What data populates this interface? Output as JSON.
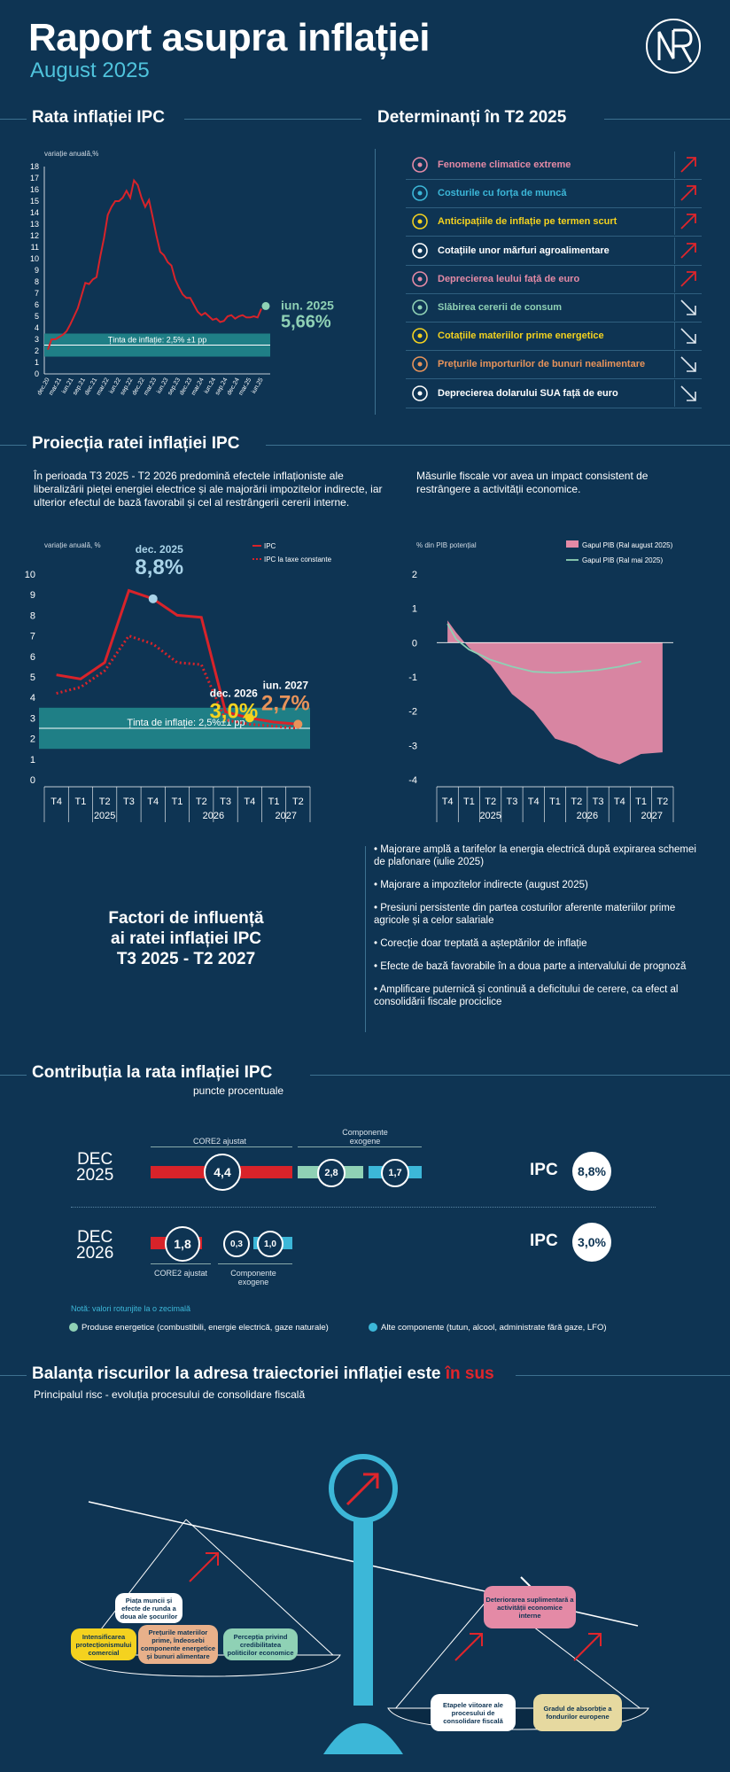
{
  "header": {
    "title": "Raport asupra inflației",
    "subtitle": "August 2025"
  },
  "colors": {
    "bg": "#0e3453",
    "red": "#d8232a",
    "teal": "#1f7f86",
    "green": "#8fd1b5",
    "cyan": "#3cb7d8",
    "pink": "#e48aa6",
    "yellow": "#f4d21f",
    "orange": "#e8935a"
  },
  "sections": {
    "ipc": "Rata inflației IPC",
    "determinants": "Determinanți în T2 2025",
    "projection": "Proiecția ratei inflației IPC",
    "contribution": "Contribuția la rata inflației IPC",
    "contribution_sub": "puncte procentuale",
    "risks_title_a": "Balanța riscurilor la adresa traiectoriei inflației este ",
    "risks_title_b": "în sus",
    "risks_sub": "Principalul risc - evoluția procesului de consolidare fiscală"
  },
  "determinants": [
    {
      "label": "Fenomene climatice extreme",
      "color": "#e48aa6",
      "icon": "climate-icon",
      "dir": "up"
    },
    {
      "label": "Costurile cu forța de muncă",
      "color": "#3cb7d8",
      "icon": "wallet-icon",
      "dir": "up"
    },
    {
      "label": "Anticipațiile de inflație pe termen scurt",
      "color": "#f4d21f",
      "icon": "expectations-icon",
      "dir": "up"
    },
    {
      "label": "Cotațiile unor mărfuri agroalimentare",
      "color": "#ffffff",
      "icon": "agro-icon",
      "dir": "up"
    },
    {
      "label": "Deprecierea leului față de euro",
      "color": "#e48aa6",
      "icon": "euro-icon",
      "dir": "up"
    },
    {
      "label": "Slăbirea cererii de consum",
      "color": "#8fd1b5",
      "icon": "cart-icon",
      "dir": "down"
    },
    {
      "label": "Cotațiile materiilor prime energetice",
      "color": "#f4d21f",
      "icon": "energy-icon",
      "dir": "down"
    },
    {
      "label": "Prețurile importurilor de bunuri nealimentare",
      "color": "#e8935a",
      "icon": "import-icon",
      "dir": "down"
    },
    {
      "label": "Deprecierea dolarului SUA față de euro",
      "color": "#ffffff",
      "icon": "dollar-icon",
      "dir": "down"
    }
  ],
  "chart_data": [
    {
      "type": "line",
      "title": "Rata inflației IPC",
      "ylabel": "variație anuală,%",
      "ylim": [
        0,
        18
      ],
      "yticks": [
        0,
        1,
        2,
        3,
        4,
        5,
        6,
        7,
        8,
        9,
        10,
        11,
        12,
        13,
        14,
        15,
        16,
        17,
        18
      ],
      "xticks": [
        "dec.20",
        "mar.21",
        "iun.21",
        "sep.21",
        "dec.21",
        "mar.22",
        "iun.22",
        "sep.22",
        "dec.22",
        "mar.23",
        "iun.23",
        "sep.23",
        "dec.23",
        "mar.24",
        "iun.24",
        "sep.24",
        "dec.24",
        "mar.25",
        "iun.25"
      ],
      "series": [
        {
          "values": [
            2.1,
            3.0,
            3.0,
            3.2,
            3.4,
            3.7,
            4.3,
            5.0,
            5.7,
            6.8,
            7.9,
            7.8,
            8.2,
            8.4,
            10.2,
            11.8,
            13.8,
            14.5,
            15.0,
            15.0,
            15.3,
            15.9,
            15.3,
            16.8,
            16.4,
            15.3,
            14.5,
            15.1,
            13.6,
            12.0,
            10.6,
            10.3,
            9.7,
            9.4,
            8.2,
            7.5,
            6.9,
            6.6,
            6.6,
            6.0,
            5.4,
            5.1,
            5.3,
            5.0,
            4.7,
            4.8,
            4.5,
            4.6,
            5.0,
            5.1,
            4.8,
            5.0,
            5.1,
            4.9,
            4.9,
            5.0,
            4.9,
            5.66
          ],
          "color": "#d8232a"
        }
      ],
      "target_band": [
        1.5,
        3.5
      ],
      "target_line": 2.5,
      "target_label": "Ținta de inflație: 2,5% ±1 pp",
      "endpoint_label": "iun. 2025",
      "endpoint_value": "5,66%"
    },
    {
      "type": "line",
      "ylabel": "variație anuală, %",
      "ylim": [
        0,
        10
      ],
      "yticks": [
        0,
        1,
        2,
        3,
        4,
        5,
        6,
        7,
        8,
        9,
        10
      ],
      "categories": [
        "T4",
        "T1",
        "T2",
        "T3",
        "T4",
        "T1",
        "T2",
        "T3",
        "T4",
        "T1",
        "T2"
      ],
      "years": [
        "2025",
        "2026",
        "2027"
      ],
      "series": [
        {
          "name": "IPC",
          "values": [
            5.1,
            4.9,
            5.7,
            9.2,
            8.8,
            8.0,
            7.9,
            3.3,
            3.0,
            2.8,
            2.7
          ],
          "color": "#d8232a"
        },
        {
          "name": "IPC la taxe constante",
          "values": [
            4.2,
            4.5,
            5.3,
            7.0,
            6.6,
            5.7,
            5.6,
            2.9,
            2.7,
            2.6,
            2.5
          ],
          "color": "#d8232a",
          "dashed": true
        }
      ],
      "target_band": [
        1.5,
        3.5
      ],
      "target_line": 2.5,
      "target_label": "Ținta de inflație: 2,5%±1 pp",
      "annotations": [
        {
          "label": "dec. 2025",
          "value": "8,8%"
        },
        {
          "label": "dec. 2026",
          "value": "3,0%"
        },
        {
          "label": "iun. 2027",
          "value": "2,7%"
        }
      ]
    },
    {
      "type": "area",
      "ylabel": "% din PIB potențial",
      "ylim": [
        -4,
        2
      ],
      "yticks": [
        -4,
        -3,
        -2,
        -1,
        0,
        1,
        2
      ],
      "categories": [
        "T4",
        "T1",
        "T2",
        "T3",
        "T4",
        "T1",
        "T2",
        "T3",
        "T4",
        "T1",
        "T2"
      ],
      "years": [
        "2025",
        "2026",
        "2027"
      ],
      "series": [
        {
          "name": "Gapul PIB (Ral august 2025)",
          "values": [
            0.65,
            0.3,
            -0.15,
            -0.65,
            -1.5,
            -2.0,
            -2.8,
            -3.0,
            -3.35,
            -3.55,
            -3.25,
            -3.2
          ],
          "x": [
            0,
            0.4,
            1,
            2,
            3,
            4,
            5,
            6,
            7,
            8,
            9,
            10
          ],
          "color": "#e48aa6"
        },
        {
          "name": "Gapul PIB (Ral mai 2025)",
          "values": [
            0.55,
            0.1,
            -0.2,
            -0.5,
            -0.7,
            -0.85,
            -0.88,
            -0.85,
            -0.8,
            -0.7,
            -0.55
          ],
          "x": [
            0,
            0.4,
            1,
            2,
            3,
            4,
            5,
            6,
            7,
            8,
            9
          ],
          "color": "#8fd1b5"
        }
      ]
    }
  ],
  "projection": {
    "left_text": "În perioada T3 2025 - T2 2026 predomină efectele inflaționiste ale liberalizării pieței energiei electrice și ale majorării impozitelor indirecte, iar ulterior efectul de bază favorabil și cel al restrângerii cererii interne.",
    "right_text": "Măsurile fiscale vor avea un impact consistent de restrângere a activității economice."
  },
  "factors": {
    "title_1": "Factori de influență",
    "title_2": "ai ratei inflației IPC",
    "title_3": "T3 2025 - T2 2027",
    "bullets": [
      "• Majorare amplă a tarifelor la energia electrică după expirarea schemei de plafonare (iulie 2025)",
      "• Majorare a impozitelor indirecte (august 2025)",
      "• Presiuni persistente din partea costurilor aferente materiilor prime agricole și a celor salariale",
      "• Corecție doar treptată a așteptărilor de inflație",
      "• Efecte de bază favorabile în a doua parte a intervalului de prognoză",
      "• Amplificare puternică și continuă a deficitului de cerere, ca efect al consolidării fiscale prociclice"
    ]
  },
  "contribution": {
    "dec2025": {
      "month": "DEC",
      "year": "2025",
      "core": "4,4",
      "energy": "2,8",
      "other": "1,7",
      "ipc_label": "IPC",
      "ipc": "8,8%",
      "core_label": "CORE2 ajustat",
      "exo_label_1": "Componente",
      "exo_label_2": "exogene"
    },
    "dec2026": {
      "month": "DEC",
      "year": "2026",
      "core": "1,8",
      "energy": "0,3",
      "other": "1,0",
      "ipc_label": "IPC",
      "ipc": "3,0%",
      "core_label": "CORE2 ajustat",
      "exo_label_1": "Componente",
      "exo_label_2": "exogene"
    },
    "note": "Notă: valori rotunjite la o zecimală",
    "legend_energy": "Produse energetice (combustibili, energie electrică, gaze naturale)",
    "legend_other": "Alte componente (tutun, alcool, administrate fără gaze, LFO)"
  },
  "risks": {
    "left": [
      {
        "label": "Piața muncii și efecte de runda a doua ale șocurilor",
        "color": "#ffffff"
      },
      {
        "label": "Intensificarea protecționismului comercial",
        "color": "#f4d21f"
      },
      {
        "label": "Prețurile materiilor prime, îndeosebi componente energetice și bunuri alimentare",
        "color": "#e8b08a"
      },
      {
        "label": "Percepția privind credibilitatea politicilor economice",
        "color": "#8fd1b5"
      }
    ],
    "right": [
      {
        "label": "Deteriorarea suplimentară a activității economice interne",
        "color": "#e48aa6"
      }
    ],
    "bottom": [
      {
        "label": "Etapele viitoare ale procesului de consolidare fiscală",
        "color": "#ffffff"
      },
      {
        "label": "Gradul de absorbție a fondurilor europene",
        "color": "#e6d9a0"
      }
    ]
  }
}
